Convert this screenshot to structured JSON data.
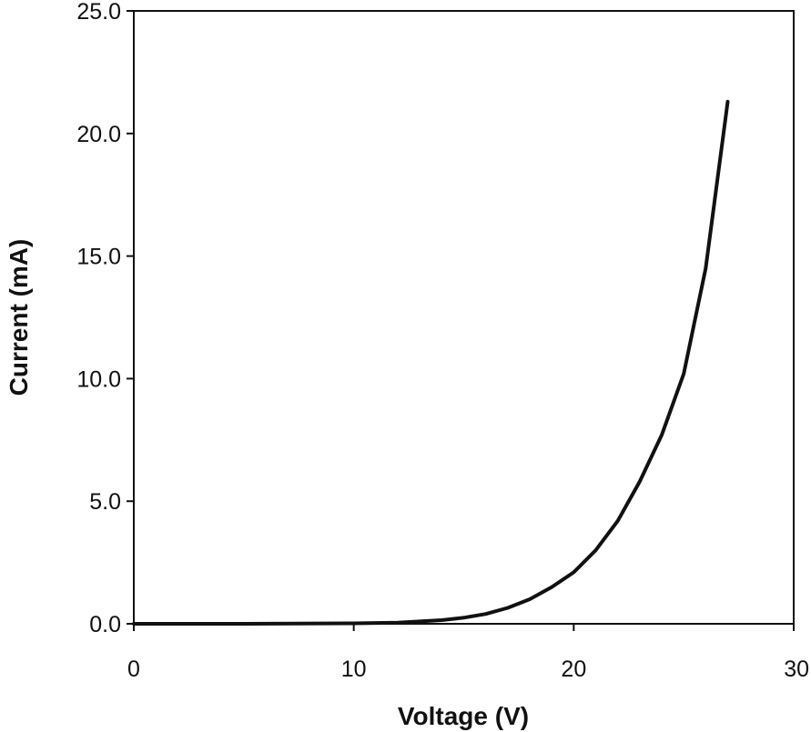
{
  "chart_data": {
    "type": "line",
    "title": "",
    "xlabel": "Voltage  (V)",
    "ylabel": "Current  (mA)",
    "xlim": [
      0,
      30
    ],
    "ylim": [
      0,
      25
    ],
    "x_ticks": [
      "0",
      "10",
      "20",
      "30"
    ],
    "y_ticks": [
      "0.0",
      "5.0",
      "10.0",
      "15.0",
      "20.0",
      "25.0"
    ],
    "grid": false,
    "legend": "none",
    "line_color": "#111111",
    "series": [
      {
        "x": [
          0,
          5,
          10,
          12,
          14,
          15,
          16,
          17,
          18,
          19,
          20,
          21,
          22,
          23,
          24,
          25,
          26,
          27
        ],
        "y": [
          0.0,
          0.0,
          0.02,
          0.05,
          0.15,
          0.25,
          0.4,
          0.65,
          1.0,
          1.5,
          2.1,
          3.0,
          4.2,
          5.8,
          7.7,
          10.2,
          14.5,
          21.3
        ]
      }
    ]
  }
}
